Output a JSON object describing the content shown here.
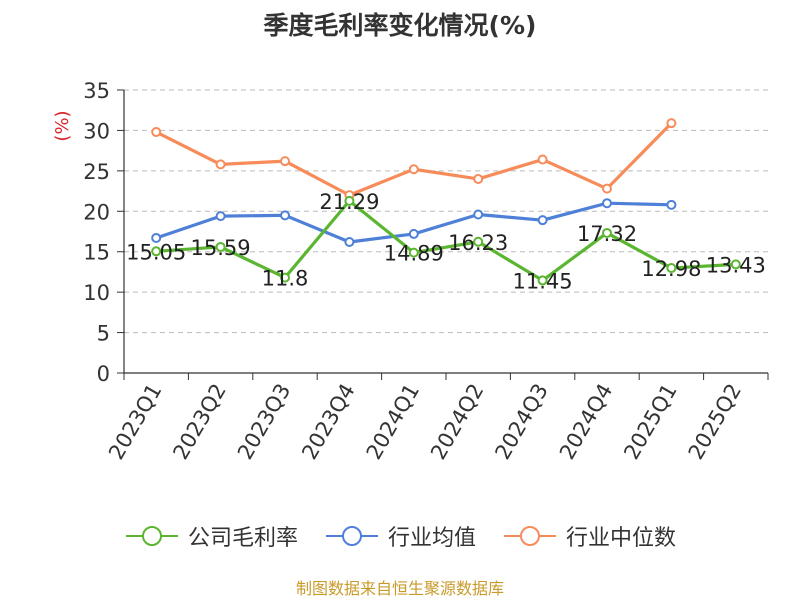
{
  "page": {
    "source": "制图数据来自恒生聚源数据库"
  },
  "colors": {
    "company": "#5ab630",
    "avg": "#4f80d8",
    "median": "#f78c5a",
    "axis": "#333333",
    "grid": "#bbbbbb",
    "ylabel": "#d9242b",
    "source": "#c89a2a"
  },
  "chart_data": {
    "type": "line",
    "title": "季度毛利率变化情况(%)",
    "ylabel": "(%)",
    "xlabel": "",
    "ylim": [
      0,
      35
    ],
    "yticks": [
      0,
      5,
      10,
      15,
      20,
      25,
      30,
      35
    ],
    "grid": true,
    "legend_position": "bottom",
    "categories": [
      "2023Q1",
      "2023Q2",
      "2023Q3",
      "2023Q4",
      "2024Q1",
      "2024Q2",
      "2024Q3",
      "2024Q4",
      "2025Q1",
      "2025Q2"
    ],
    "series": [
      {
        "name": "公司毛利率",
        "color_key": "company",
        "show_labels": true,
        "values": [
          15.05,
          15.59,
          11.8,
          21.29,
          14.89,
          16.23,
          11.45,
          17.32,
          12.98,
          13.43
        ]
      },
      {
        "name": "行业均值",
        "color_key": "avg",
        "show_labels": false,
        "values": [
          16.7,
          19.4,
          19.5,
          16.2,
          17.2,
          19.6,
          18.9,
          21.0,
          20.8,
          null
        ]
      },
      {
        "name": "行业中位数",
        "color_key": "median",
        "show_labels": false,
        "values": [
          29.8,
          25.8,
          26.2,
          22.0,
          25.2,
          24.0,
          26.4,
          22.8,
          30.9,
          null
        ]
      }
    ]
  }
}
